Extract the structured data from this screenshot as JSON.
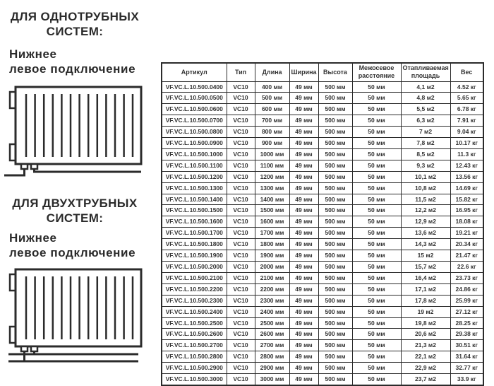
{
  "page": {
    "background": "#ffffff",
    "text_color": "#2b2b2b",
    "border_color": "#2b2b2b"
  },
  "sections": [
    {
      "title_line1": "ДЛЯ ОДНОТРУБНЫХ",
      "title_line2": "СИСТЕМ:",
      "subtitle_line1": "Нижнее",
      "subtitle_line2": "левое подключение",
      "diagram": "radiator-bottom-left-connection-single-pipe"
    },
    {
      "title_line1": "ДЛЯ ДВУХТРУБНЫХ",
      "title_line2": "СИСТЕМ:",
      "subtitle_line1": "Нижнее",
      "subtitle_line2": "левое подключение",
      "diagram": "radiator-bottom-left-connection-two-pipe"
    }
  ],
  "table": {
    "headers": [
      "Артикул",
      "Тип",
      "Длина",
      "Ширина",
      "Высота",
      "Межосевое расстояние",
      "Отапливаемая площадь",
      "Вес"
    ],
    "rows": [
      [
        "VF.VC.L.10.500.0400",
        "VC10",
        "400 мм",
        "49 мм",
        "500 мм",
        "50 мм",
        "4,1 м2",
        "4.52 кг"
      ],
      [
        "VF.VC.L.10.500.0500",
        "VC10",
        "500 мм",
        "49 мм",
        "500 мм",
        "50 мм",
        "4,8 м2",
        "5.65 кг"
      ],
      [
        "VF.VC.L.10.500.0600",
        "VC10",
        "600 мм",
        "49 мм",
        "500 мм",
        "50 мм",
        "5,5 м2",
        "6.78 кг"
      ],
      [
        "VF.VC.L.10.500.0700",
        "VC10",
        "700 мм",
        "49 мм",
        "500 мм",
        "50 мм",
        "6,3 м2",
        "7.91 кг"
      ],
      [
        "VF.VC.L.10.500.0800",
        "VC10",
        "800 мм",
        "49 мм",
        "500 мм",
        "50 мм",
        "7 м2",
        "9.04 кг"
      ],
      [
        "VF.VC.L.10.500.0900",
        "VC10",
        "900 мм",
        "49 мм",
        "500 мм",
        "50 мм",
        "7,8 м2",
        "10.17 кг"
      ],
      [
        "VF.VC.L.10.500.1000",
        "VC10",
        "1000 мм",
        "49 мм",
        "500 мм",
        "50 мм",
        "8,5 м2",
        "11.3 кг"
      ],
      [
        "VF.VC.L.10.500.1100",
        "VC10",
        "1100 мм",
        "49 мм",
        "500 мм",
        "50 мм",
        "9,3 м2",
        "12.43 кг"
      ],
      [
        "VF.VC.L.10.500.1200",
        "VC10",
        "1200 мм",
        "49 мм",
        "500 мм",
        "50 мм",
        "10,1 м2",
        "13.56 кг"
      ],
      [
        "VF.VC.L.10.500.1300",
        "VC10",
        "1300 мм",
        "49 мм",
        "500 мм",
        "50 мм",
        "10,8 м2",
        "14.69 кг"
      ],
      [
        "VF.VC.L.10.500.1400",
        "VC10",
        "1400 мм",
        "49 мм",
        "500 мм",
        "50 мм",
        "11,5 м2",
        "15.82 кг"
      ],
      [
        "VF.VC.L.10.500.1500",
        "VC10",
        "1500 мм",
        "49 мм",
        "500 мм",
        "50 мм",
        "12,2 м2",
        "16.95 кг"
      ],
      [
        "VF.VC.L.10.500.1600",
        "VC10",
        "1600 мм",
        "49 мм",
        "500 мм",
        "50 мм",
        "12,9 м2",
        "18.08 кг"
      ],
      [
        "VF.VC.L.10.500.1700",
        "VC10",
        "1700 мм",
        "49 мм",
        "500 мм",
        "50 мм",
        "13,6 м2",
        "19.21 кг"
      ],
      [
        "VF.VC.L.10.500.1800",
        "VC10",
        "1800 мм",
        "49 мм",
        "500 мм",
        "50 мм",
        "14,3 м2",
        "20.34 кг"
      ],
      [
        "VF.VC.L.10.500.1900",
        "VC10",
        "1900 мм",
        "49 мм",
        "500 мм",
        "50 мм",
        "15 м2",
        "21.47 кг"
      ],
      [
        "VF.VC.L.10.500.2000",
        "VC10",
        "2000 мм",
        "49 мм",
        "500 мм",
        "50 мм",
        "15,7 м2",
        "22.6 кг"
      ],
      [
        "VF.VC.L.10.500.2100",
        "VC10",
        "2100 мм",
        "49 мм",
        "500 мм",
        "50 мм",
        "16,4 м2",
        "23.73 кг"
      ],
      [
        "VF.VC.L.10.500.2200",
        "VC10",
        "2200 мм",
        "49 мм",
        "500 мм",
        "50 мм",
        "17,1 м2",
        "24.86 кг"
      ],
      [
        "VF.VC.L.10.500.2300",
        "VC10",
        "2300 мм",
        "49 мм",
        "500 мм",
        "50 мм",
        "17,8 м2",
        "25.99 кг"
      ],
      [
        "VF.VC.L.10.500.2400",
        "VC10",
        "2400 мм",
        "49 мм",
        "500 мм",
        "50 мм",
        "19 м2",
        "27.12 кг"
      ],
      [
        "VF.VC.L.10.500.2500",
        "VC10",
        "2500 мм",
        "49 мм",
        "500 мм",
        "50 мм",
        "19,8 м2",
        "28.25 кг"
      ],
      [
        "VF.VC.L.10.500.2600",
        "VC10",
        "2600 мм",
        "49 мм",
        "500 мм",
        "50 мм",
        "20,6 м2",
        "29.38 кг"
      ],
      [
        "VF.VC.L.10.500.2700",
        "VC10",
        "2700 мм",
        "49 мм",
        "500 мм",
        "50 мм",
        "21,3 м2",
        "30.51 кг"
      ],
      [
        "VF.VC.L.10.500.2800",
        "VC10",
        "2800 мм",
        "49 мм",
        "500 мм",
        "50 мм",
        "22,1 м2",
        "31.64 кг"
      ],
      [
        "VF.VC.L.10.500.2900",
        "VC10",
        "2900 мм",
        "49 мм",
        "500 мм",
        "50 мм",
        "22,9 м2",
        "32.77 кг"
      ],
      [
        "VF.VC.L.10.500.3000",
        "VC10",
        "3000 мм",
        "49 мм",
        "500 мм",
        "50 мм",
        "23,7 м2",
        "33.9 кг"
      ]
    ]
  }
}
